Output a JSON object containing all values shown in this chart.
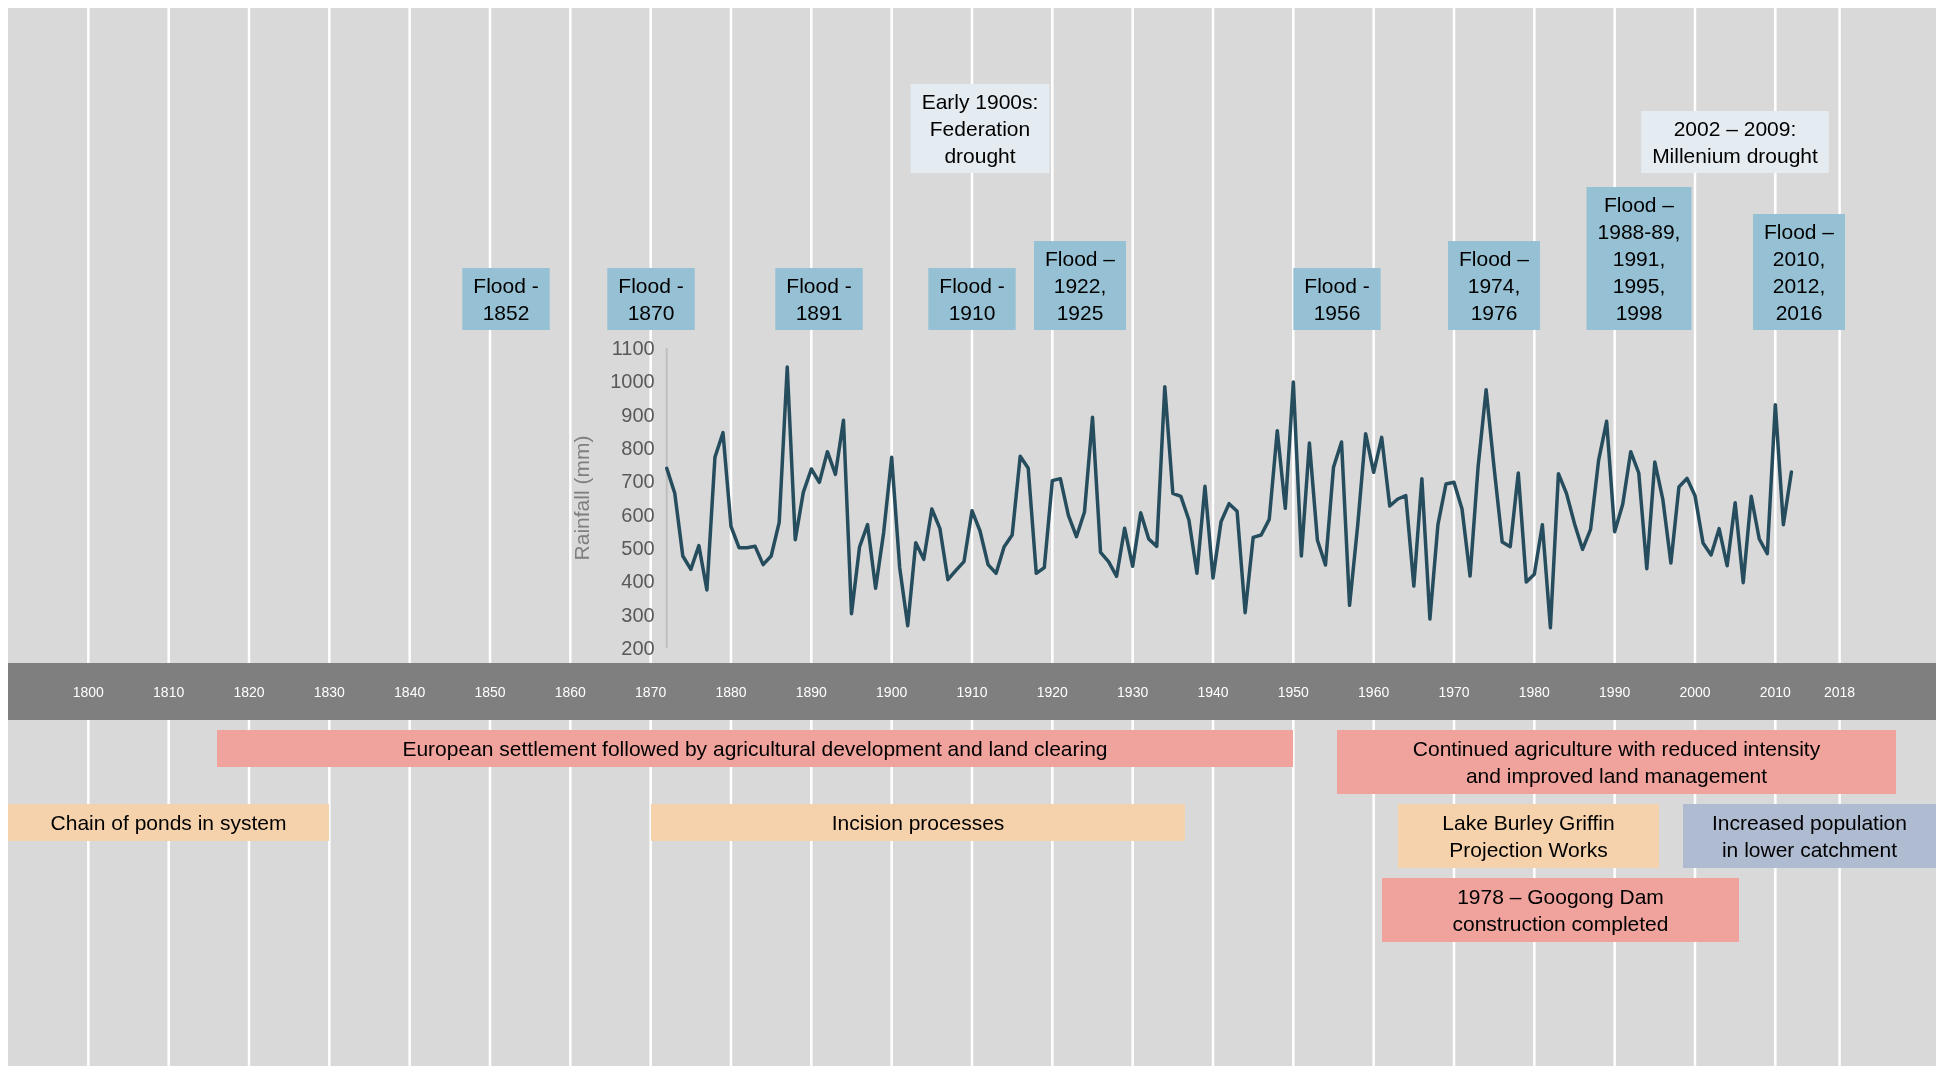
{
  "chart_data": {
    "type": "line",
    "ylabel": "Rainfall (mm)",
    "x": [
      1872,
      1873,
      1874,
      1875,
      1876,
      1877,
      1878,
      1879,
      1880,
      1881,
      1882,
      1883,
      1884,
      1885,
      1886,
      1887,
      1888,
      1889,
      1890,
      1891,
      1892,
      1893,
      1894,
      1895,
      1896,
      1897,
      1898,
      1899,
      1900,
      1901,
      1902,
      1903,
      1904,
      1905,
      1906,
      1907,
      1908,
      1909,
      1910,
      1911,
      1912,
      1913,
      1914,
      1915,
      1916,
      1917,
      1918,
      1919,
      1920,
      1921,
      1922,
      1923,
      1924,
      1925,
      1926,
      1927,
      1928,
      1929,
      1930,
      1931,
      1932,
      1933,
      1934,
      1935,
      1936,
      1937,
      1938,
      1939,
      1940,
      1941,
      1942,
      1943,
      1944,
      1945,
      1946,
      1947,
      1948,
      1949,
      1950,
      1951,
      1952,
      1953,
      1954,
      1955,
      1956,
      1957,
      1958,
      1959,
      1960,
      1961,
      1962,
      1963,
      1964,
      1965,
      1966,
      1967,
      1968,
      1969,
      1970,
      1971,
      1972,
      1973,
      1974,
      1975,
      1976,
      1977,
      1978,
      1979,
      1980,
      1981,
      1982,
      1983,
      1984,
      1985,
      1986,
      1987,
      1988,
      1989,
      1990,
      1991,
      1992,
      1993,
      1994,
      1995,
      1996,
      1997,
      1998,
      1999,
      2000,
      2001,
      2002,
      2003,
      2004,
      2005,
      2006,
      2007,
      2008,
      2009,
      2010,
      2011,
      2012
    ],
    "series": [
      {
        "color": "#264d5e",
        "values": [
          739,
          664,
          476,
          436,
          507,
          374,
          772,
          846,
          565,
          501,
          501,
          505,
          450,
          476,
          577,
          1043,
          525,
          667,
          737,
          697,
          789,
          721,
          883,
          303,
          503,
          570,
          379,
          546,
          772,
          441,
          267,
          516,
          466,
          617,
          559,
          405,
          433,
          459,
          612,
          551,
          450,
          424,
          504,
          539,
          775,
          739,
          424,
          441,
          702,
          708,
          598,
          534,
          608,
          892,
          487,
          459,
          415,
          559,
          445,
          606,
          527,
          505,
          984,
          664,
          655,
          584,
          424,
          685,
          410,
          579,
          633,
          610,
          306,
          532,
          539,
          586,
          852,
          619,
          998,
          476,
          815,
          523,
          449,
          742,
          818,
          328,
          565,
          843,
          727,
          832,
          626,
          647,
          657,
          386,
          708,
          287,
          570,
          692,
          697,
          617,
          416,
          744,
          975,
          739,
          518,
          504,
          725,
          398,
          421,
          570,
          261,
          723,
          664,
          573,
          496,
          556,
          763,
          880,
          549,
          631,
          789,
          725,
          438,
          758,
          645,
          455,
          683,
          709,
          657,
          515,
          479,
          558,
          447,
          636,
          396,
          655,
          527,
          483,
          930,
          570,
          728
        ]
      }
    ],
    "xlim": [
      1790,
      2030
    ],
    "xticks": [
      1800,
      1810,
      1820,
      1830,
      1840,
      1850,
      1860,
      1870,
      1880,
      1890,
      1900,
      1910,
      1920,
      1930,
      1940,
      1950,
      1960,
      1970,
      1980,
      1990,
      2000,
      2010,
      2018
    ],
    "ylim": [
      200,
      1100
    ],
    "yticks": [
      200,
      300,
      400,
      500,
      600,
      700,
      800,
      900,
      1000,
      1100
    ],
    "grid": "x",
    "annotations": [
      "Early 1900s:\nFederation\ndrought",
      "2002 – 2009:\nMillenium drought",
      "Flood -\n1852",
      "Flood -\n1870",
      "Flood -\n1891",
      "Flood -\n1910",
      "Flood –\n1922,\n1925",
      "Flood -\n1956",
      "Flood –\n1974,\n1976",
      "Flood –\n1988-89,\n1991,\n1995,\n1998",
      "Flood –\n2010,\n2012,\n2016",
      "European settlement followed by agricultural development and land clearing",
      "Continued agriculture with reduced intensity\nand improved land management",
      "Chain of ponds in system",
      "Incision processes",
      "Lake Burley Griffin\nProjection Works",
      "Increased population\nin lower catchment",
      "1978 – Googong Dam\nconstruction completed"
    ]
  }
}
